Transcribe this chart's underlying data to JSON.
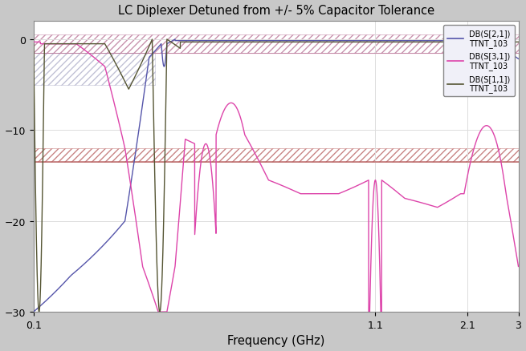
{
  "title": "LC Diplexer Detuned from +/- 5% Capacitor Tolerance",
  "xlabel": "Frequency (GHz)",
  "ylim": [
    -30,
    2
  ],
  "yticks": [
    0,
    -10,
    -20,
    -30
  ],
  "xticks_vals": [
    0.1,
    1.1,
    2.1,
    3.0
  ],
  "xticks_labels": [
    "0.1",
    "1.1",
    "2.1",
    "3"
  ],
  "fig_bg_color": "#c8c8c8",
  "plot_bg_color": "#ffffff",
  "line_colors": [
    "#5555aa",
    "#dd44aa",
    "#555533"
  ],
  "hatch_top_color": "#bb7799",
  "hatch_bot_color": "#bb6666",
  "hatch_top_ymin": -1.5,
  "hatch_top_ymax": 0.5,
  "hatch_bot_ymin": -13.5,
  "hatch_bot_ymax": -12.0,
  "grid_color": "#dddddd"
}
